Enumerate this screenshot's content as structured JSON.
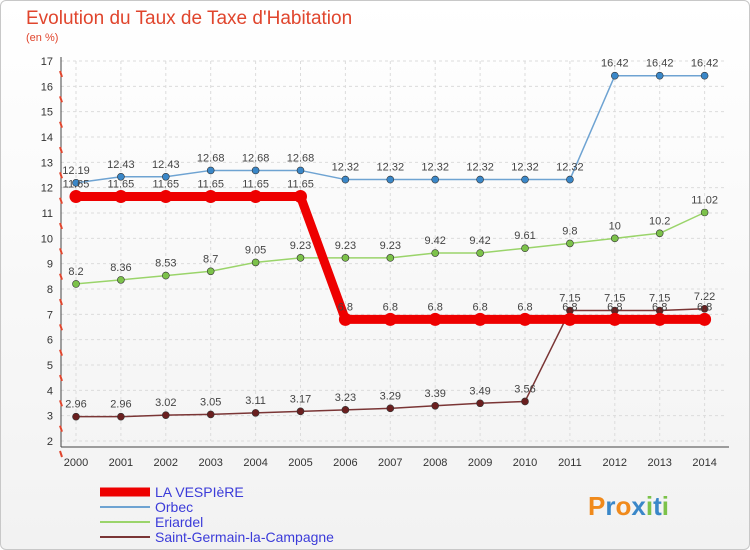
{
  "chart_data": {
    "type": "line",
    "title": "Evolution du Taux de Taxe d'Habitation",
    "subtitle": "(en %)",
    "x": [
      "2000",
      "2001",
      "2002",
      "2003",
      "2004",
      "2005",
      "2006",
      "2007",
      "2008",
      "2009",
      "2010",
      "2011",
      "2012",
      "2013",
      "2014"
    ],
    "ylim": [
      2,
      17
    ],
    "yticks": [
      2,
      3,
      4,
      5,
      6,
      7,
      8,
      9,
      10,
      11,
      12,
      13,
      14,
      15,
      16,
      17
    ],
    "grid": true,
    "legend_position": "bottom-left",
    "series": [
      {
        "name": "Orbec",
        "color": "#6ea3d2",
        "marker": "#3a87c8",
        "width": 1.5,
        "values": [
          12.19,
          12.43,
          12.43,
          12.68,
          12.68,
          12.68,
          12.32,
          12.32,
          12.32,
          12.32,
          12.32,
          12.32,
          16.42,
          16.42,
          16.42
        ],
        "labels": [
          "12.19",
          "12.43",
          "12.43",
          "12.68",
          "12.68",
          "12.68",
          "12.32",
          "12.32",
          "12.32",
          "12.32",
          "12.32",
          "12.32",
          "16.42",
          "16.42",
          "16.42"
        ]
      },
      {
        "name": "Eriardel",
        "color": "#9ad46a",
        "marker": "#7cc24a",
        "width": 1.5,
        "values": [
          8.2,
          8.36,
          8.53,
          8.7,
          9.05,
          9.23,
          9.23,
          9.23,
          9.42,
          9.42,
          9.61,
          9.8,
          10,
          10.2,
          11.02
        ],
        "labels": [
          "8.2",
          "8.36",
          "8.53",
          "8.7",
          "9.05",
          "9.23",
          "9.23",
          "9.23",
          "9.42",
          "9.42",
          "9.61",
          "9.8",
          "10",
          "10.2",
          "11.02"
        ]
      },
      {
        "name": "Saint-Germain-la-Campagne",
        "color": "#7a3535",
        "marker": "#6a1f1f",
        "width": 1.5,
        "values": [
          2.96,
          2.96,
          3.02,
          3.05,
          3.11,
          3.17,
          3.23,
          3.29,
          3.39,
          3.49,
          3.56,
          7.15,
          7.15,
          7.15,
          7.22
        ],
        "labels": [
          "2.96",
          "2.96",
          "3.02",
          "3.05",
          "3.11",
          "3.17",
          "3.23",
          "3.29",
          "3.39",
          "3.49",
          "3.56",
          "7.15",
          "7.15",
          "7.15",
          "7.22"
        ]
      },
      {
        "name": "LA VESPIèRE",
        "color": "#ee0000",
        "marker": "#ee0000",
        "width": 9,
        "values": [
          11.65,
          11.65,
          11.65,
          11.65,
          11.65,
          11.65,
          6.8,
          6.8,
          6.8,
          6.8,
          6.8,
          6.8,
          6.8,
          6.8,
          6.8
        ],
        "labels": [
          "11.65",
          "11.65",
          "11.65",
          "11.65",
          "11.65",
          "11.65",
          "6.8",
          "6.8",
          "6.8",
          "6.8",
          "6.8",
          "6.8",
          "6.8",
          "6.8",
          "6.8"
        ]
      }
    ],
    "legend": [
      {
        "name": "LA VESPIèRE",
        "color": "#ee0000",
        "width": 9
      },
      {
        "name": "Orbec",
        "color": "#6ea3d2",
        "width": 2
      },
      {
        "name": "Eriardel",
        "color": "#9ad46a",
        "width": 2
      },
      {
        "name": "Saint-Germain-la-Campagne",
        "color": "#7a3535",
        "width": 2
      }
    ],
    "legend_text_color": "#3b3bd9"
  },
  "logo": {
    "text": "Proxiti",
    "letters": [
      "P",
      "r",
      "o",
      "x",
      "i",
      "t",
      "i"
    ],
    "colors": [
      "#f08a1c",
      "#3a87c8",
      "#f08a1c",
      "#3a87c8",
      "#7cc24a",
      "#3a87c8",
      "#7cc24a"
    ]
  }
}
